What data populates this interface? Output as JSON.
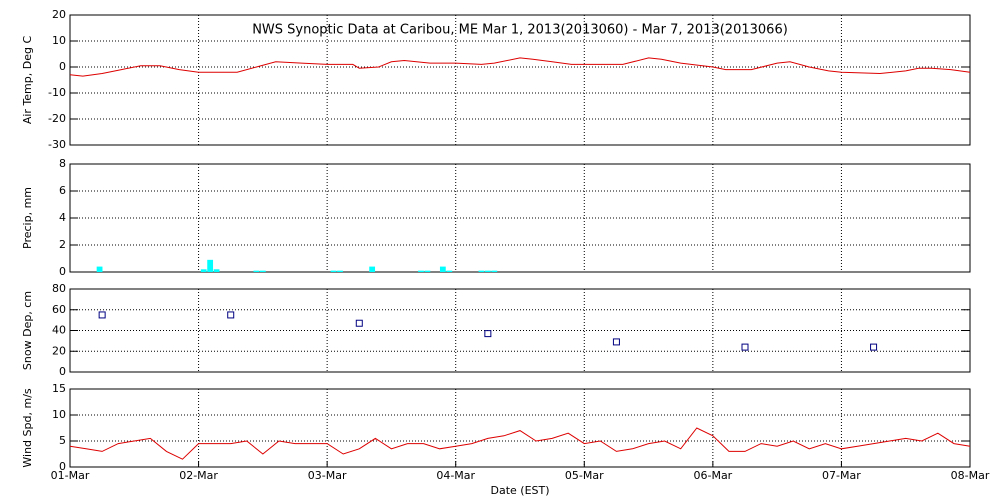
{
  "chart_data": [
    {
      "type": "line",
      "title": "NWS Synoptic Data at Caribou, ME   Mar  1, 2013(2013060) - Mar  7, 2013(2013066)",
      "ylabel": "Air Temp, Deg C",
      "color": "#dd0000",
      "x": [
        0,
        0.1,
        0.25,
        0.4,
        0.55,
        0.7,
        0.85,
        1.0,
        1.2,
        1.3,
        1.45,
        1.6,
        1.8,
        2.0,
        2.2,
        2.25,
        2.4,
        2.5,
        2.6,
        2.8,
        3.0,
        3.2,
        3.3,
        3.5,
        3.6,
        3.75,
        3.9,
        4.0,
        4.2,
        4.3,
        4.5,
        4.6,
        4.75,
        5.0,
        5.1,
        5.3,
        5.5,
        5.6,
        5.75,
        5.9,
        6.0,
        6.3,
        6.5,
        6.6,
        6.7,
        6.85,
        7.0
      ],
      "values": [
        -3,
        -3.5,
        -2.5,
        -1,
        0.5,
        0.5,
        -1,
        -2,
        -2,
        -2,
        0,
        2,
        1.5,
        1,
        1,
        -0.5,
        0,
        2,
        2.5,
        1.5,
        1.5,
        1,
        1.5,
        3.5,
        3,
        2,
        1,
        1,
        1,
        1,
        3.5,
        3,
        1.5,
        0,
        -1,
        -1,
        1.5,
        2,
        0,
        -1.5,
        -2,
        -2.5,
        -1.5,
        -0.5,
        -0.5,
        -1,
        -2
      ],
      "xlim": [
        0,
        7
      ],
      "ylim": [
        -30,
        20
      ],
      "yticks": [
        -30,
        -20,
        -10,
        0,
        10,
        20
      ],
      "grid": true
    },
    {
      "type": "bar",
      "ylabel": "Precip, mm",
      "color": "#00ffff",
      "x": [
        0.23,
        1.04,
        1.09,
        1.14,
        1.45,
        1.5,
        2.05,
        2.1,
        2.35,
        2.73,
        2.78,
        2.9,
        2.95,
        3.2,
        3.25,
        3.3
      ],
      "values": [
        0.4,
        0.2,
        0.9,
        0.2,
        0.1,
        0.1,
        0.1,
        0.1,
        0.4,
        0.1,
        0.1,
        0.4,
        0.1,
        0.1,
        0.1,
        0.1
      ],
      "xlim": [
        0,
        7
      ],
      "ylim": [
        0,
        8
      ],
      "yticks": [
        0,
        2,
        4,
        6,
        8
      ],
      "grid": true
    },
    {
      "type": "scatter",
      "ylabel": "Snow Dep, cm",
      "color": "#000080",
      "x": [
        0.25,
        1.25,
        2.25,
        3.25,
        4.25,
        5.25,
        6.25
      ],
      "values": [
        55,
        55,
        47,
        37,
        29,
        24,
        24
      ],
      "xlim": [
        0,
        7
      ],
      "ylim": [
        0,
        80
      ],
      "yticks": [
        0,
        20,
        40,
        60,
        80
      ],
      "grid": true
    },
    {
      "type": "line",
      "ylabel": "Wind Spd, m/s",
      "xlabel": "Date (EST)",
      "color": "#dd0000",
      "x": [
        0,
        0.125,
        0.25,
        0.375,
        0.5,
        0.625,
        0.75,
        0.875,
        1.0,
        1.125,
        1.25,
        1.375,
        1.5,
        1.625,
        1.75,
        1.875,
        2.0,
        2.125,
        2.25,
        2.375,
        2.5,
        2.625,
        2.75,
        2.875,
        3.0,
        3.125,
        3.25,
        3.375,
        3.5,
        3.625,
        3.75,
        3.875,
        4.0,
        4.125,
        4.25,
        4.375,
        4.5,
        4.625,
        4.75,
        4.875,
        5.0,
        5.125,
        5.25,
        5.375,
        5.5,
        5.625,
        5.75,
        5.875,
        6.0,
        6.125,
        6.25,
        6.375,
        6.5,
        6.625,
        6.75,
        6.875,
        7.0
      ],
      "values": [
        4,
        3.5,
        3,
        4.5,
        5,
        5.5,
        3,
        1.5,
        4.5,
        4.5,
        4.5,
        5,
        2.5,
        5,
        4.5,
        4.5,
        4.5,
        2.5,
        3.5,
        5.5,
        3.5,
        4.5,
        4.5,
        3.5,
        4,
        4.5,
        5.5,
        6,
        7,
        5,
        5.5,
        6.5,
        4.5,
        5,
        3,
        3.5,
        4.5,
        5,
        3.5,
        7.5,
        6,
        3,
        3,
        4.5,
        4,
        5,
        3.5,
        4.5,
        3.5,
        4,
        4.5,
        5,
        5.5,
        5,
        6.5,
        4.5,
        4
      ],
      "xlim": [
        0,
        7
      ],
      "ylim": [
        0,
        15
      ],
      "yticks": [
        0,
        5,
        10,
        15
      ],
      "grid": true,
      "xticks": [
        {
          "value": 0,
          "label": "01-Mar"
        },
        {
          "value": 1,
          "label": "02-Mar"
        },
        {
          "value": 2,
          "label": "03-Mar"
        },
        {
          "value": 3,
          "label": "04-Mar"
        },
        {
          "value": 4,
          "label": "05-Mar"
        },
        {
          "value": 5,
          "label": "06-Mar"
        },
        {
          "value": 6,
          "label": "07-Mar"
        },
        {
          "value": 7,
          "label": "08-Mar"
        }
      ]
    }
  ]
}
